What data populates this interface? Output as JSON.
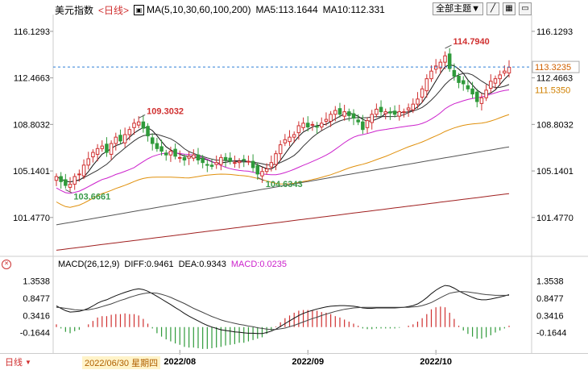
{
  "header": {
    "symbol": "美元指数",
    "period": "<日线>",
    "ma_label": "MA(5,10,30,60,100,200)",
    "ma5": "MA5:113.1644",
    "ma10": "MA10:112.331",
    "topic_button": "全部主题▼"
  },
  "macd_header": {
    "label": "MACD(26,12,9)",
    "diff": "DIFF:0.9461",
    "dea": "DEA:0.9343",
    "macd": "MACD:0.0235"
  },
  "bottom": {
    "period_tab": "日线",
    "cursor_date": "2022/06/30 星期四"
  },
  "colors": {
    "up": "#d03030",
    "down": "#2f9a3a",
    "ma5": "#111111",
    "ma10": "#333333",
    "ma30": "#cc22cc",
    "ma60": "#e0900c",
    "ma100": "#555555",
    "ma200": "#a02020",
    "macd_diff": "#111111",
    "macd_dea": "#444444",
    "ref_line": "#2d7fd8"
  },
  "chart_data": {
    "type": "candlestick",
    "x_labels": [
      "2022/08",
      "2022/09",
      "2022/10"
    ],
    "y_ticks": [
      116.1293,
      112.4663,
      108.8032,
      105.1401,
      101.477
    ],
    "ylim": [
      98.8,
      117.2
    ],
    "price_labels": {
      "current": 113.3235,
      "ma_label": 111.535,
      "high": "114.7940",
      "high_left": "109.3032",
      "low_mid": "104.6343",
      "low_left": "103.6661"
    },
    "high_value": 114.794,
    "high_left_value": 109.3032,
    "low_mid_value": 104.6343,
    "low_left_value": 103.6661,
    "ref_value": 113.3235,
    "macd_ticks": [
      1.3538,
      0.8477,
      0.3416,
      -0.1644
    ],
    "macd_ylim": [
      -0.62,
      1.6
    ],
    "closes": [
      104.7,
      104.3,
      104.0,
      104.1,
      104.7,
      104.9,
      105.6,
      106.1,
      106.6,
      106.9,
      107.1,
      106.6,
      107.3,
      107.8,
      107.5,
      108.0,
      108.4,
      108.9,
      109.0,
      108.5,
      107.9,
      107.3,
      106.9,
      106.7,
      106.4,
      106.7,
      106.3,
      106.2,
      106.0,
      106.3,
      106.4,
      106.0,
      105.8,
      105.6,
      105.5,
      105.8,
      106.2,
      106.0,
      105.9,
      105.8,
      105.9,
      106.0,
      105.9,
      105.4,
      104.9,
      105.1,
      105.3,
      105.8,
      106.5,
      107.2,
      107.6,
      107.8,
      108.0,
      108.7,
      108.9,
      108.6,
      108.8,
      108.6,
      108.9,
      109.2,
      109.6,
      109.9,
      109.6,
      109.8,
      109.5,
      109.3,
      109.0,
      108.4,
      109.1,
      109.6,
      110.0,
      109.8,
      109.8,
      109.7,
      109.6,
      109.8,
      109.8,
      110.1,
      110.4,
      110.8,
      111.6,
      112.4,
      113.0,
      113.4,
      113.7,
      114.2,
      113.2,
      112.6,
      112.1,
      112.0,
      111.6,
      111.2,
      110.6,
      110.9,
      111.5,
      112.2,
      112.4,
      112.7,
      113.0,
      113.3
    ],
    "macd_diff": [
      0.62,
      0.55,
      0.48,
      0.44,
      0.45,
      0.46,
      0.5,
      0.55,
      0.62,
      0.7,
      0.76,
      0.8,
      0.86,
      0.92,
      0.97,
      1.02,
      1.06,
      1.1,
      1.12,
      1.1,
      1.05,
      0.98,
      0.9,
      0.82,
      0.74,
      0.66,
      0.57,
      0.49,
      0.4,
      0.32,
      0.25,
      0.18,
      0.11,
      0.05,
      0.0,
      -0.04,
      -0.08,
      -0.1,
      -0.12,
      -0.14,
      -0.15,
      -0.17,
      -0.18,
      -0.18,
      -0.19,
      -0.19,
      -0.16,
      -0.12,
      -0.06,
      0.02,
      0.1,
      0.18,
      0.26,
      0.34,
      0.4,
      0.45,
      0.49,
      0.53,
      0.56,
      0.59,
      0.61,
      0.62,
      0.63,
      0.63,
      0.62,
      0.61,
      0.59,
      0.56,
      0.55,
      0.55,
      0.56,
      0.56,
      0.56,
      0.56,
      0.56,
      0.57,
      0.58,
      0.6,
      0.63,
      0.68,
      0.76,
      0.86,
      0.98,
      1.08,
      1.16,
      1.22,
      1.2,
      1.14,
      1.06,
      0.99,
      0.93,
      0.87,
      0.82,
      0.8,
      0.8,
      0.82,
      0.85,
      0.88,
      0.91,
      0.95
    ],
    "macd_dea": [
      0.58,
      0.57,
      0.55,
      0.53,
      0.51,
      0.5,
      0.5,
      0.51,
      0.53,
      0.56,
      0.6,
      0.64,
      0.68,
      0.73,
      0.78,
      0.82,
      0.87,
      0.91,
      0.95,
      0.98,
      1.0,
      1.0,
      0.99,
      0.96,
      0.92,
      0.87,
      0.81,
      0.75,
      0.69,
      0.62,
      0.55,
      0.49,
      0.43,
      0.37,
      0.31,
      0.26,
      0.21,
      0.17,
      0.14,
      0.11,
      0.08,
      0.06,
      0.03,
      0.01,
      -0.02,
      -0.04,
      -0.06,
      -0.07,
      -0.07,
      -0.05,
      -0.03,
      0.01,
      0.05,
      0.1,
      0.15,
      0.2,
      0.25,
      0.29,
      0.34,
      0.38,
      0.42,
      0.46,
      0.49,
      0.52,
      0.54,
      0.56,
      0.57,
      0.58,
      0.58,
      0.58,
      0.58,
      0.58,
      0.58,
      0.58,
      0.58,
      0.58,
      0.58,
      0.58,
      0.59,
      0.6,
      0.63,
      0.67,
      0.72,
      0.79,
      0.86,
      0.93,
      0.99,
      1.02,
      1.04,
      1.04,
      1.03,
      1.01,
      0.99,
      0.97,
      0.95,
      0.94,
      0.93,
      0.93,
      0.93,
      0.93
    ]
  }
}
